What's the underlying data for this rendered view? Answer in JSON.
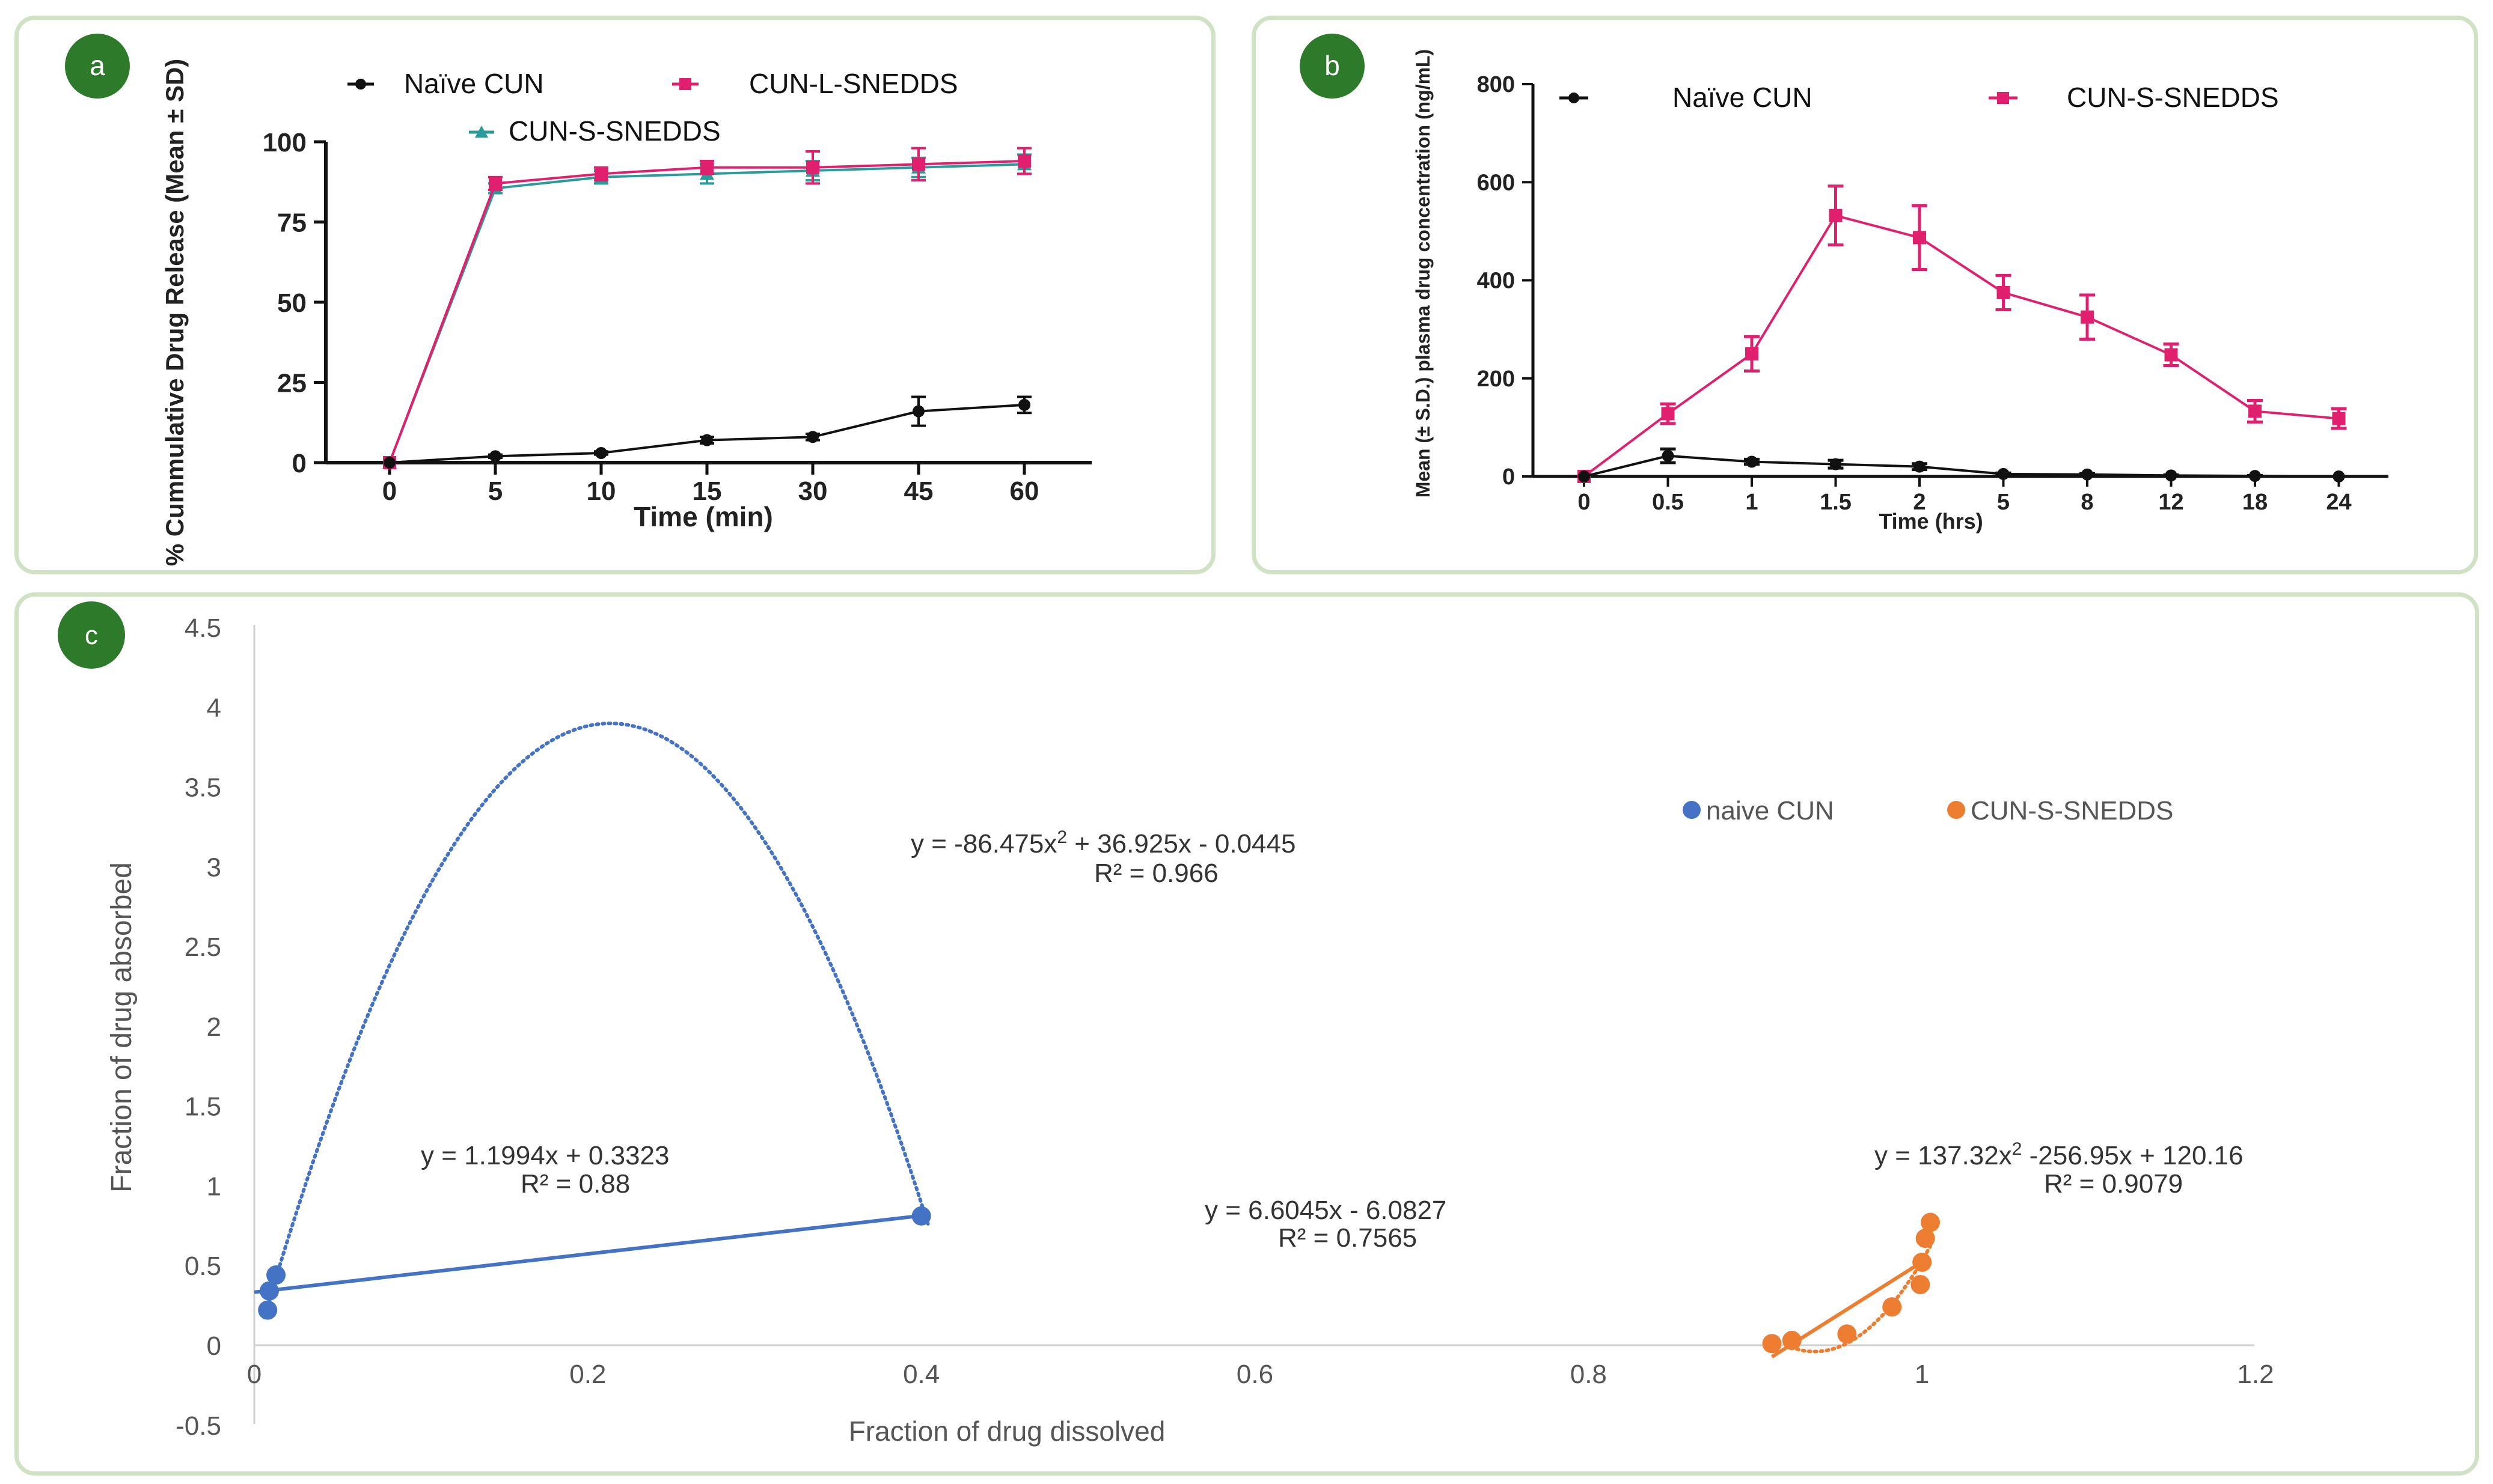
{
  "panels": {
    "a": {
      "badge": "a"
    },
    "b": {
      "badge": "b"
    },
    "c": {
      "badge": "c"
    }
  },
  "colors": {
    "naive": "#111111",
    "lsnedds": "#e0206e",
    "ssnedds_a": "#2a9a9a",
    "c_naive": "#4472c4",
    "c_snedds": "#ed7d31",
    "badge": "#2d7a2b"
  },
  "chart_data": [
    {
      "type": "line",
      "panel": "a",
      "title": "",
      "xlabel": "Time (min)",
      "ylabel": "% Cummulative Drug  Release (Mean ± SD)",
      "categories": [
        "0",
        "5",
        "10",
        "15",
        "30",
        "45",
        "60"
      ],
      "ylim": [
        0,
        100
      ],
      "yticks": [
        "0",
        "25",
        "50",
        "75",
        "100"
      ],
      "series": [
        {
          "name": "Naïve CUN",
          "marker": "circle",
          "color": "#111111",
          "values": [
            0,
            2,
            3,
            7,
            8,
            16,
            18
          ],
          "err": [
            0,
            0.5,
            0.5,
            1,
            1,
            4.5,
            2.5
          ]
        },
        {
          "name": "CUN-L-SNEDDS",
          "marker": "square",
          "color": "#e0206e",
          "values": [
            0,
            87,
            90,
            92,
            92,
            93,
            94
          ],
          "err": [
            0,
            2,
            2,
            2,
            5,
            5,
            4
          ]
        },
        {
          "name": "CUN-S-SNEDDS",
          "marker": "triangle",
          "color": "#2a9a9a",
          "values": [
            0,
            85.5,
            89,
            90,
            91,
            92,
            93
          ],
          "err": [
            0,
            1.5,
            2,
            3,
            3,
            3,
            3
          ]
        }
      ],
      "legend": [
        "Naïve CUN",
        "CUN-L-SNEDDS",
        "CUN-S-SNEDDS"
      ]
    },
    {
      "type": "line",
      "panel": "b",
      "title": "",
      "xlabel": "Time (hrs)",
      "ylabel": "Mean (± S.D.) plasma drug concentration (ng/mL)",
      "categories": [
        "0",
        "0.5",
        "1",
        "1.5",
        "2",
        "5",
        "8",
        "12",
        "18",
        "24"
      ],
      "ylim": [
        0,
        800
      ],
      "yticks": [
        "0",
        "200",
        "400",
        "600",
        "800"
      ],
      "series": [
        {
          "name": "Naïve CUN",
          "marker": "circle",
          "color": "#111111",
          "values": [
            0,
            42,
            30,
            25,
            20,
            5,
            4,
            2,
            1,
            0
          ],
          "err": [
            0,
            14,
            5,
            8,
            6,
            2,
            2,
            1,
            1,
            0
          ]
        },
        {
          "name": "CUN-S-SNEDDS",
          "marker": "square",
          "color": "#e0206e",
          "values": [
            0,
            128,
            250,
            532,
            487,
            375,
            325,
            248,
            133,
            118
          ],
          "err": [
            0,
            20,
            35,
            60,
            65,
            35,
            45,
            22,
            22,
            20
          ]
        }
      ],
      "legend": [
        "Naïve CUN",
        "CUN-S-SNEDDS"
      ]
    },
    {
      "type": "scatter",
      "panel": "c",
      "title": "",
      "xlabel": "Fraction of drug  dissolved",
      "ylabel": "Fraction of drug absorbed",
      "xlim": [
        0,
        1.2
      ],
      "ylim": [
        -0.5,
        4.5
      ],
      "xticks": [
        "0",
        "0.2",
        "0.4",
        "0.6",
        "0.8",
        "1",
        "1.2"
      ],
      "yticks": [
        "-0.5",
        "0",
        "0.5",
        "1",
        "1.5",
        "2",
        "2.5",
        "3",
        "3.5",
        "4",
        "4.5"
      ],
      "series": [
        {
          "name": "naive CUN",
          "color": "#4472c4",
          "points": [
            [
              0.008,
              0.22
            ],
            [
              0.009,
              0.34
            ],
            [
              0.013,
              0.44
            ],
            [
              0.4,
              0.81
            ]
          ],
          "linear": {
            "m": 1.1994,
            "b": 0.3323,
            "range": [
              0,
              0.4
            ]
          },
          "poly": {
            "a": -86.475,
            "b": 36.925,
            "c": -0.0445,
            "range": [
              0.006,
              0.404
            ]
          }
        },
        {
          "name": "CUN-S-SNEDDS",
          "color": "#ed7d31",
          "points": [
            [
              0.91,
              0.01
            ],
            [
              0.922,
              0.03
            ],
            [
              0.955,
              0.07
            ],
            [
              0.982,
              0.24
            ],
            [
              0.999,
              0.38
            ],
            [
              1.0,
              0.52
            ],
            [
              1.002,
              0.67
            ],
            [
              1.005,
              0.77
            ]
          ],
          "linear": {
            "m": 6.6045,
            "b": -6.0827,
            "range": [
              0.91,
              1.002
            ]
          },
          "poly": {
            "a": 137.32,
            "b": -256.95,
            "c": 120.16,
            "range": [
              0.925,
              1.005
            ]
          }
        }
      ],
      "equations": {
        "naive_poly": {
          "eq_a": "y = -86.475x",
          "sup": "2",
          "eq_b": " + 36.925x - 0.0445",
          "r2": "R² = 0.966"
        },
        "naive_lin": {
          "eq": "y = 1.1994x + 0.3323",
          "r2": "R² = 0.88"
        },
        "snedds_lin": {
          "eq": "y = 6.6045x - 6.0827",
          "r2": "R² = 0.7565"
        },
        "snedds_poly": {
          "eq_a": "y = 137.32x",
          "sup": "2",
          "eq_b": " -256.95x + 120.16",
          "r2": "R² = 0.9079"
        }
      },
      "legend": [
        "naive CUN",
        "CUN-S-SNEDDS"
      ]
    }
  ]
}
